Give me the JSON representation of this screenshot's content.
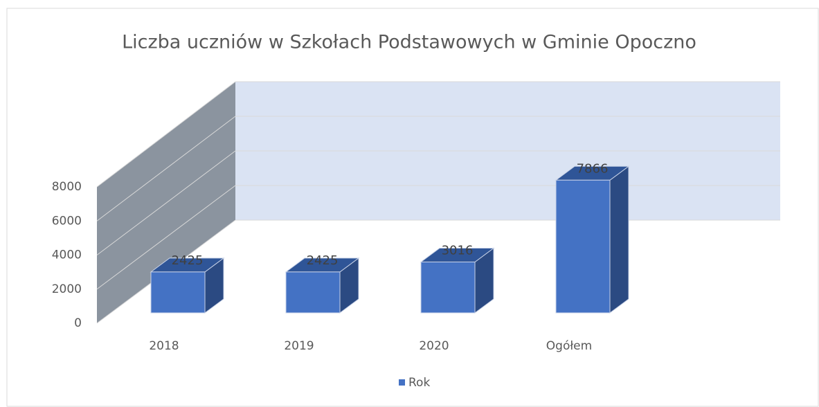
{
  "chart_data": {
    "type": "bar3d",
    "title": "Liczba uczniów w Szkołach Podstawowych w Gminie Opoczno",
    "categories": [
      "2018",
      "2019",
      "2020",
      "Ogółem"
    ],
    "series": [
      {
        "name": "Rok",
        "color": "#4472c4",
        "values": [
          2425,
          2425,
          3016,
          7866
        ]
      }
    ],
    "ylim": [
      0,
      8000
    ],
    "yticks": [
      0,
      2000,
      4000,
      6000,
      8000
    ],
    "grid": true,
    "legend": "bottom"
  }
}
